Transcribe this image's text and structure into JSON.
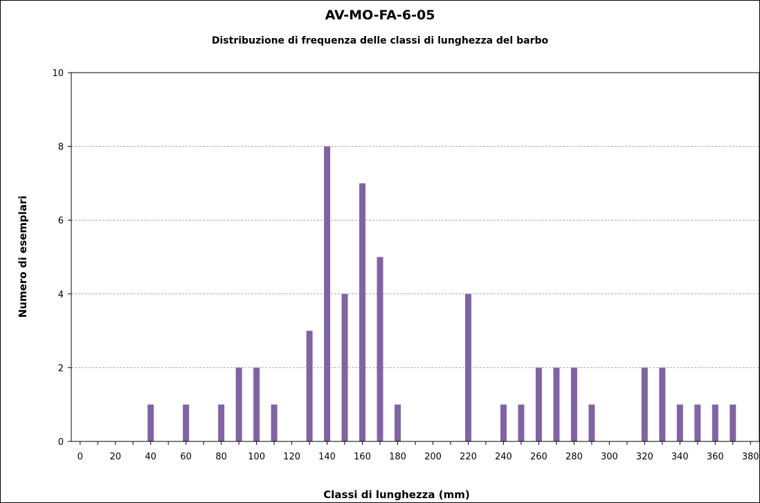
{
  "chart_data": {
    "type": "bar",
    "title": "AV-MO-FA-6-05",
    "subtitle": "Distribuzione di frequenza  delle classi di lunghezza  del barbo",
    "xlabel": "Classi di lunghezza (mm)",
    "ylabel": "Numero di esemplari",
    "xlim": [
      -5,
      385
    ],
    "ylim": [
      0,
      10
    ],
    "x_ticks": [
      0,
      20,
      40,
      60,
      80,
      100,
      120,
      140,
      160,
      180,
      200,
      220,
      240,
      260,
      280,
      300,
      320,
      340,
      360,
      380
    ],
    "x_minor_step": 10,
    "y_ticks": [
      0,
      2,
      4,
      6,
      8,
      10
    ],
    "grid": "horizontal dashed at y ticks",
    "legend": "none",
    "bar_color": "#8064A2",
    "x": [
      40,
      60,
      80,
      90,
      100,
      110,
      130,
      140,
      150,
      160,
      170,
      180,
      220,
      240,
      250,
      260,
      270,
      280,
      290,
      320,
      330,
      340,
      350,
      360,
      370
    ],
    "values": [
      1,
      1,
      1,
      2,
      2,
      1,
      3,
      8,
      4,
      7,
      5,
      1,
      4,
      1,
      1,
      2,
      2,
      2,
      1,
      2,
      2,
      1,
      1,
      1,
      1
    ]
  }
}
